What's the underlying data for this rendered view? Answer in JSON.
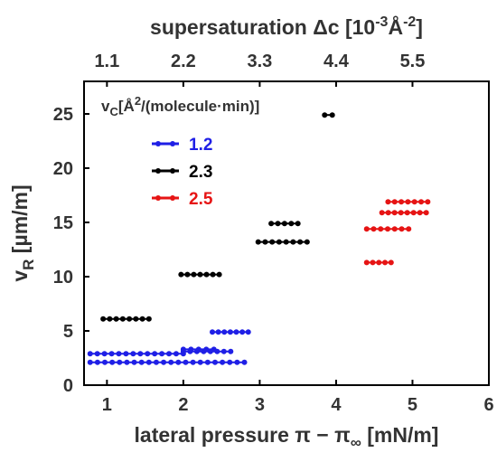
{
  "chart_data": {
    "type": "scatter",
    "xlabel": "lateral pressure π − π∞ [mN/m]",
    "ylabel": "vR [µm/m]",
    "top_xlabel": "supersaturation Δc [10⁻³Å⁻²]",
    "xlim": [
      0.7,
      6
    ],
    "ylim": [
      0,
      28
    ],
    "xticks": [
      "1",
      "2",
      "3",
      "4",
      "5",
      "6"
    ],
    "yticks": [
      "0",
      "5",
      "10",
      "15",
      "20",
      "25"
    ],
    "top_ticks": [
      {
        "x": 1,
        "label": "1.1"
      },
      {
        "x": 2,
        "label": "2.2"
      },
      {
        "x": 3,
        "label": "3.3"
      },
      {
        "x": 4,
        "label": "4.4"
      },
      {
        "x": 5,
        "label": "5.5"
      }
    ],
    "legend_title": "vC[Å²/(molecule·min)]",
    "legend_placement": "top-left",
    "grid": false,
    "series": [
      {
        "name": "1.2",
        "color": "#1f1fe6",
        "segments": [
          {
            "x_start": 0.78,
            "x_end": 2.8,
            "y": 2.1,
            "n": 22
          },
          {
            "x_start": 0.78,
            "x_end": 2.0,
            "y": 2.9,
            "n": 14
          },
          {
            "x_start": 2.0,
            "x_end": 2.62,
            "y": 3.1,
            "n": 8
          },
          {
            "x_start": 2.0,
            "x_end": 2.4,
            "y": 3.3,
            "n": 5
          },
          {
            "x_start": 2.38,
            "x_end": 2.85,
            "y": 4.9,
            "n": 7
          }
        ]
      },
      {
        "name": "2.3",
        "color": "#000000",
        "segments": [
          {
            "x_start": 0.95,
            "x_end": 1.55,
            "y": 6.1,
            "n": 8
          },
          {
            "x_start": 1.97,
            "x_end": 2.47,
            "y": 10.2,
            "n": 7
          },
          {
            "x_start": 2.98,
            "x_end": 3.62,
            "y": 13.2,
            "n": 8
          },
          {
            "x_start": 3.15,
            "x_end": 3.5,
            "y": 14.9,
            "n": 5
          },
          {
            "x_start": 3.85,
            "x_end": 3.95,
            "y": 24.9,
            "n": 2
          }
        ]
      },
      {
        "name": "2.5",
        "color": "#e61414",
        "segments": [
          {
            "x_start": 4.4,
            "x_end": 4.72,
            "y": 11.3,
            "n": 5
          },
          {
            "x_start": 4.4,
            "x_end": 4.95,
            "y": 14.4,
            "n": 7
          },
          {
            "x_start": 4.6,
            "x_end": 5.18,
            "y": 15.9,
            "n": 8
          },
          {
            "x_start": 4.68,
            "x_end": 5.2,
            "y": 16.9,
            "n": 7
          }
        ]
      }
    ]
  }
}
